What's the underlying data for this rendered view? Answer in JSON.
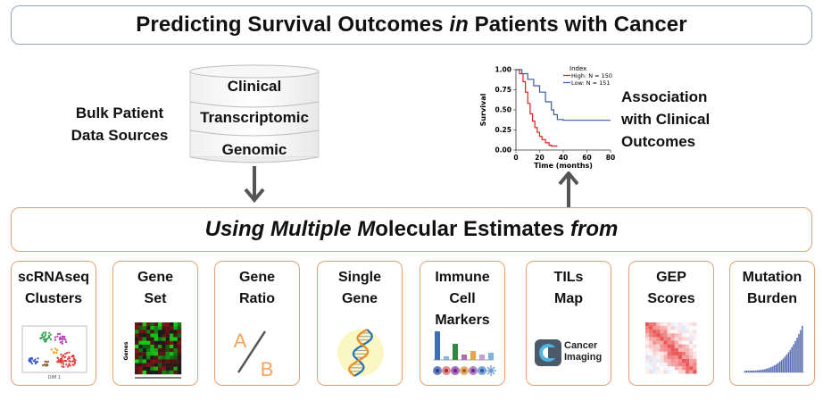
{
  "title": {
    "before": "Predicting Survival Outcomes ",
    "italic": "in",
    "after": " Patients with Cancer"
  },
  "data_sources": {
    "label": "Bulk Patient\nData Sources",
    "layers": [
      "Clinical",
      "Transcriptomic",
      "Genomic"
    ]
  },
  "outcomes_label": "Association\nwith Clinical\nOutcomes",
  "molecular": {
    "italic_1": "Using Multiple M",
    "plain": "olecular Estimates ",
    "italic_2": "from"
  },
  "cards": [
    {
      "label": "scRNAseq\nClusters"
    },
    {
      "label": "Gene\nSet"
    },
    {
      "label": "Gene\nRatio",
      "icon_letters": [
        "A",
        "B"
      ]
    },
    {
      "label": "Single\nGene"
    },
    {
      "label": "Immune\nCell\nMarkers"
    },
    {
      "label": "TILs\nMap",
      "icon_text": "Cancer\nImaging"
    },
    {
      "label": "GEP\nScores"
    },
    {
      "label": "Mutation\nBurden"
    }
  ],
  "colors": {
    "title_border": "#8aa8c6",
    "molecular_border": "#e8a073",
    "arrow": "#555555",
    "km_high": "#e41a1c",
    "km_low": "#3b5ba5"
  },
  "chart_data": {
    "type": "line",
    "title": "",
    "xlabel": "Time (months)",
    "ylabel": "Survival",
    "xlim": [
      0,
      80
    ],
    "ylim": [
      0,
      1
    ],
    "x_ticks": [
      0,
      20,
      40,
      60,
      80
    ],
    "y_ticks": [
      "0.00",
      "0.25",
      "0.50",
      "0.75",
      "1.00"
    ],
    "legend": {
      "title": "Index",
      "position": "top-right"
    },
    "series": [
      {
        "name": "High: N = 150",
        "color": "#e41a1c",
        "x": [
          0,
          3,
          6,
          8,
          10,
          12,
          14,
          16,
          18,
          20,
          22,
          25,
          28,
          30,
          35
        ],
        "y": [
          1.0,
          0.95,
          0.85,
          0.72,
          0.58,
          0.45,
          0.36,
          0.28,
          0.22,
          0.17,
          0.13,
          0.09,
          0.06,
          0.05,
          0.05
        ]
      },
      {
        "name": "Low: N = 151",
        "color": "#3b5ba5",
        "x": [
          0,
          5,
          10,
          15,
          20,
          25,
          30,
          32,
          35,
          40,
          60,
          80
        ],
        "y": [
          1.0,
          0.95,
          0.88,
          0.8,
          0.72,
          0.6,
          0.5,
          0.44,
          0.38,
          0.37,
          0.37,
          0.37
        ]
      }
    ]
  }
}
